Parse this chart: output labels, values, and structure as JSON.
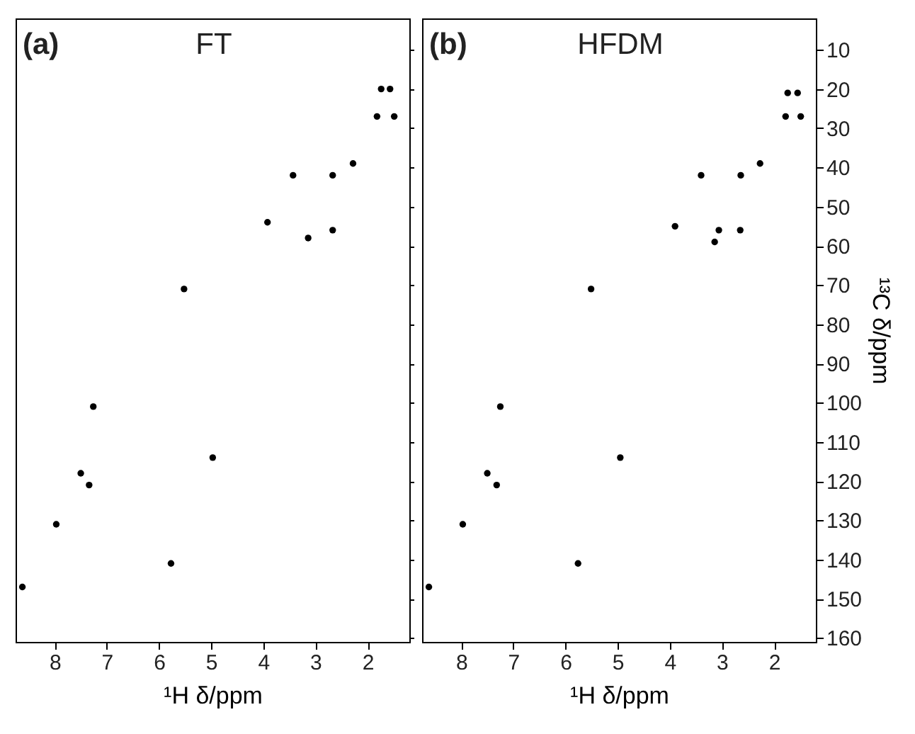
{
  "chart_data": [
    {
      "type": "scatter",
      "title": "FT",
      "annotations": [
        "(a)"
      ],
      "xlabel": "¹H δ/ppm",
      "xlim": [
        8.75,
        1.2
      ],
      "ylim": [
        161,
        2
      ],
      "xticks": [
        8,
        7,
        6,
        5,
        4,
        3,
        2
      ],
      "yticks": [
        10,
        20,
        30,
        40,
        50,
        60,
        70,
        80,
        90,
        100,
        110,
        120,
        130,
        140,
        150,
        160
      ],
      "tick_labels": "x",
      "grid": false,
      "series": [
        {
          "color": "#000000",
          "x": [
            1.74,
            1.57,
            1.82,
            1.49,
            2.28,
            3.43,
            2.67,
            3.92,
            3.14,
            2.67,
            5.52,
            7.26,
            4.97,
            7.5,
            7.34,
            7.97,
            5.77,
            8.62
          ],
          "values": [
            20,
            20,
            27,
            27,
            39,
            42,
            42,
            54,
            58,
            56,
            71,
            101,
            114,
            118,
            121,
            131,
            141,
            147
          ]
        }
      ]
    },
    {
      "type": "scatter",
      "title": "HFDM",
      "annotations": [
        "(b)"
      ],
      "xlabel": "¹H δ/ppm",
      "ylabel": "¹³C δ/ppm",
      "xlim": [
        8.75,
        1.2
      ],
      "ylim": [
        161,
        2
      ],
      "xticks": [
        8,
        7,
        6,
        5,
        4,
        3,
        2
      ],
      "yticks": [
        10,
        20,
        30,
        40,
        50,
        60,
        70,
        80,
        90,
        100,
        110,
        120,
        130,
        140,
        150,
        160
      ],
      "grid": false,
      "series": [
        {
          "color": "#000000",
          "x": [
            1.74,
            1.55,
            1.78,
            1.49,
            2.27,
            3.4,
            2.64,
            3.9,
            3.06,
            2.65,
            3.14,
            5.51,
            7.25,
            4.95,
            7.5,
            7.32,
            7.97,
            5.76,
            8.62
          ],
          "values": [
            21,
            21,
            27,
            27,
            39,
            42,
            42,
            55,
            56,
            56,
            59,
            71,
            101,
            114,
            118,
            121,
            131,
            141,
            147
          ]
        }
      ]
    }
  ]
}
